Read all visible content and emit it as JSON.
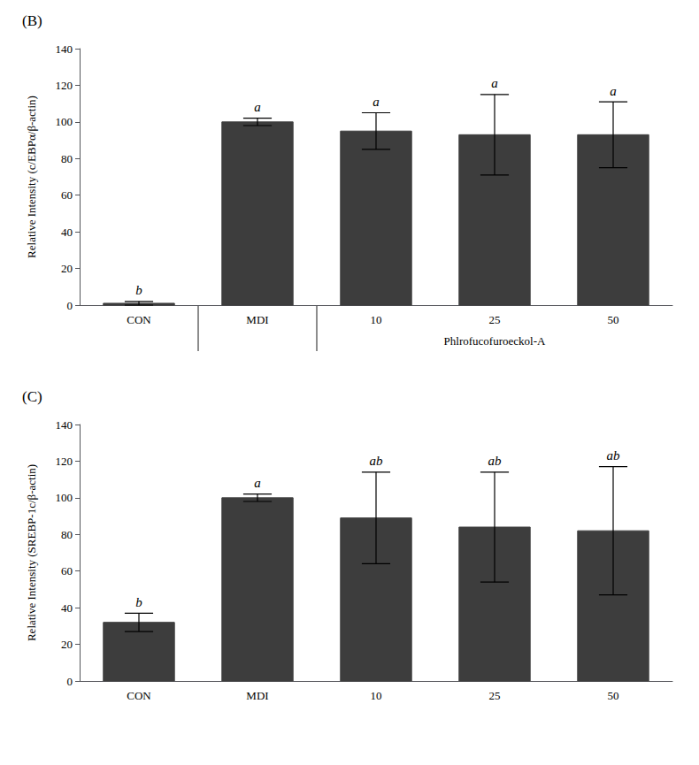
{
  "chart_data": [
    {
      "type": "bar",
      "title": "(B)",
      "categories": [
        "CON",
        "MDI",
        "10",
        "25",
        "50"
      ],
      "values": [
        1.0,
        100.0,
        95.0,
        93.0,
        93.0
      ],
      "errors": [
        1.0,
        2.0,
        10.0,
        22.0,
        18.0
      ],
      "annotations": [
        {
          "category": "CON",
          "text": "b"
        },
        {
          "category": "MDI",
          "text": "a"
        },
        {
          "category": "10",
          "text": "a"
        },
        {
          "category": "25",
          "text": "a"
        },
        {
          "category": "50",
          "text": "a"
        },
        {
          "categories": [
            "10",
            "25",
            "50"
          ],
          "text": "Phlrofucofuroeckol-A"
        }
      ],
      "ylabel": "Relative Intensity (c/EBPα/β-actin)",
      "ylim": [
        0,
        140
      ],
      "yticks": [
        0,
        20,
        40,
        60,
        80,
        100,
        120,
        140
      ],
      "color": "#3d3d3d",
      "grid": false
    },
    {
      "type": "bar",
      "title": "(C)",
      "categories": [
        "CON",
        "MDI",
        "10",
        "25",
        "50"
      ],
      "values": [
        32.0,
        100.0,
        89.0,
        84.0,
        82.0
      ],
      "errors": [
        5.0,
        2.0,
        25.0,
        30.0,
        35.0
      ],
      "annotations": [
        {
          "category": "CON",
          "text": "b"
        },
        {
          "category": "MDI",
          "text": "a"
        },
        {
          "category": "10",
          "text": "ab"
        },
        {
          "category": "25",
          "text": "ab"
        },
        {
          "category": "50",
          "text": "ab"
        }
      ],
      "ylabel": "Relative Intensity (SREBP-1c/β-actin)",
      "ylim": [
        0,
        140
      ],
      "yticks": [
        0,
        20,
        40,
        60,
        80,
        100,
        120,
        140
      ],
      "color": "#3d3d3d",
      "grid": false
    }
  ]
}
